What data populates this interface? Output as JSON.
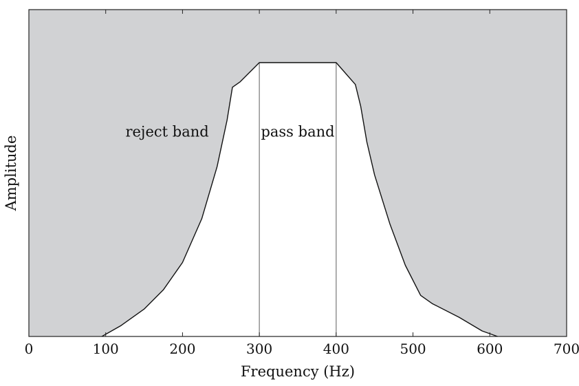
{
  "chart_data": {
    "type": "area",
    "xlabel": "Frequency (Hz)",
    "ylabel": "Amplitude",
    "xlim": [
      0,
      700
    ],
    "ylim": [
      0,
      1
    ],
    "xticks": [
      "0",
      "100",
      "200",
      "300",
      "400",
      "500",
      "600",
      "700"
    ],
    "xtick_values": [
      0,
      100,
      200,
      300,
      400,
      500,
      600,
      700
    ],
    "y_ticks_labeled": false,
    "grid": false,
    "legend": "none",
    "series": [
      {
        "x": [
          95,
          120,
          150,
          175,
          200,
          225,
          245,
          258,
          265,
          275,
          300,
          400,
          425,
          432,
          440,
          450,
          470,
          490,
          510,
          525,
          560,
          590,
          610
        ],
        "y": [
          0.0,
          0.04,
          0.1,
          0.17,
          0.27,
          0.43,
          0.62,
          0.79,
          0.91,
          0.93,
          1.0,
          1.0,
          0.92,
          0.84,
          0.71,
          0.59,
          0.41,
          0.26,
          0.15,
          0.12,
          0.07,
          0.02,
          0.0
        ]
      }
    ],
    "markers": [
      300,
      400
    ],
    "annotations": [
      {
        "text": "reject band",
        "x": 180,
        "y": 0.73
      },
      {
        "text": "pass band",
        "x": 350,
        "y": 0.73
      }
    ],
    "colors": {
      "reject_fill": "#d1d2d4",
      "pass_fill": "#ffffff",
      "curve": "#111111",
      "marker": "#777777",
      "frame": "#222222"
    }
  }
}
